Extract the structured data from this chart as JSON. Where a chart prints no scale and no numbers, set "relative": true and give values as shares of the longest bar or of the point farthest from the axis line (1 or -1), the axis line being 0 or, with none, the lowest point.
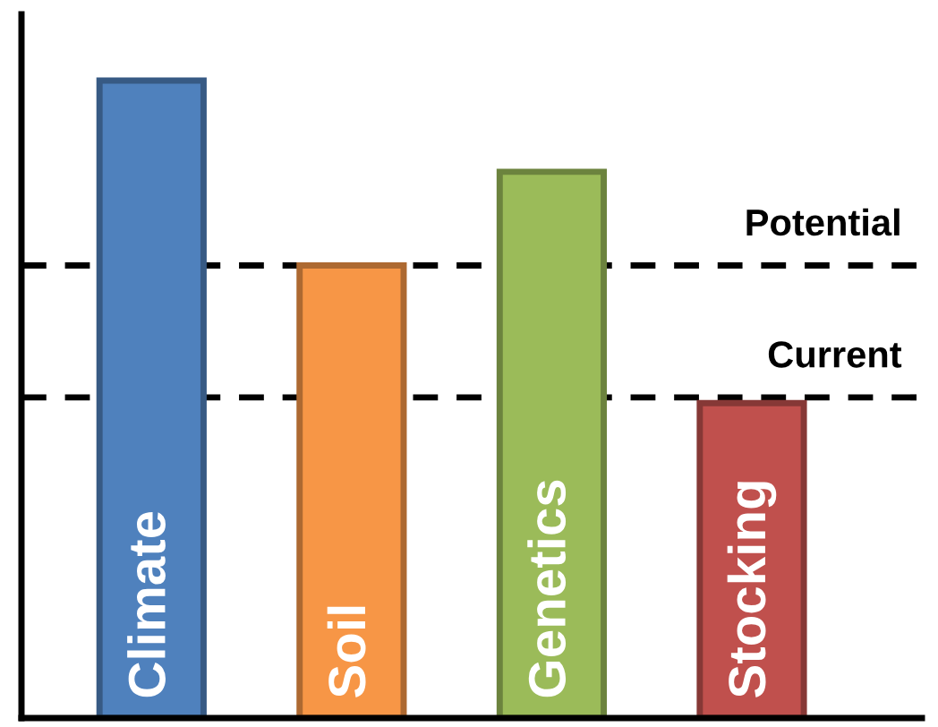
{
  "chart_data": {
    "type": "bar",
    "relative": true,
    "categories": [
      "Climate",
      "Soil",
      "Genetics",
      "Stocking"
    ],
    "values": [
      1,
      0.71,
      0.857,
      0.494
    ],
    "colors": [
      "#4f81bd",
      "#f79646",
      "#9bbb59",
      "#c0504d"
    ],
    "ref_lines": [
      {
        "axis": "y",
        "value": 0.71,
        "label": "Potential",
        "color": "#000000",
        "line_style": "dashed"
      },
      {
        "axis": "y",
        "value": 0.503,
        "label": "Current",
        "color": "#000000",
        "line_style": "dashed"
      }
    ],
    "legend": false
  }
}
